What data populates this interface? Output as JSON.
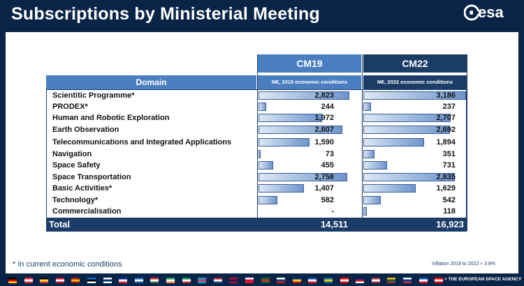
{
  "title": "Subscriptions by Ministerial Meeting",
  "logo_text": "esa",
  "columns": {
    "domain_header": "Domain",
    "cm19": {
      "label": "CM19",
      "sub": "M€, 2019 economic conditions"
    },
    "cm22": {
      "label": "CM22",
      "sub": "M€, 2022 economic conditions"
    }
  },
  "rows": [
    {
      "domain": "Scientitic Programme*",
      "cm19_text": "2,823",
      "cm22_text": "3,186",
      "cm19": 2823,
      "cm22": 3186
    },
    {
      "domain": "PRODEX*",
      "cm19_text": "244",
      "cm22_text": "237",
      "cm19": 244,
      "cm22": 237
    },
    {
      "domain": "Human and Robotic Exploration",
      "cm19_text": "1,972",
      "cm22_text": "2,707",
      "cm19": 1972,
      "cm22": 2707
    },
    {
      "domain": "Earth Observation",
      "cm19_text": "2,607",
      "cm22_text": "2,692",
      "cm19": 2607,
      "cm22": 2692
    },
    {
      "domain": "Telecommunications and Integrated Applications",
      "cm19_text": "1,590",
      "cm22_text": "1,894",
      "cm19": 1590,
      "cm22": 1894
    },
    {
      "domain": "Navigation",
      "cm19_text": "73",
      "cm22_text": "351",
      "cm19": 73,
      "cm22": 351
    },
    {
      "domain": "Space Safety",
      "cm19_text": "455",
      "cm22_text": "731",
      "cm19": 455,
      "cm22": 731
    },
    {
      "domain": "Space Transportation",
      "cm19_text": "2,758",
      "cm22_text": "2,835",
      "cm19": 2758,
      "cm22": 2835
    },
    {
      "domain": "Basic Activities*",
      "cm19_text": "1,407",
      "cm22_text": "1,629",
      "cm19": 1407,
      "cm22": 1629
    },
    {
      "domain": "Technology*",
      "cm19_text": "582",
      "cm22_text": "542",
      "cm19": 582,
      "cm22": 542
    },
    {
      "domain": "Commercialisation",
      "cm19_text": "-",
      "cm22_text": "118",
      "cm19": 0,
      "cm22": 118
    }
  ],
  "total": {
    "label": "Total",
    "cm19": "14,511",
    "cm22": "16,923"
  },
  "footnote": "* In current economic conditions",
  "inflation_note": "Inflation 2019 to 2022 ≈ 3.8%",
  "agency_text": "+ THE EUROPEAN SPACE AGENCY",
  "colors": {
    "header_light": "#4a7ec1",
    "header_dark": "#1c3c68",
    "background": "#0a2447"
  },
  "flags": [
    [
      "#000000",
      "#dd0000",
      "#ffce00"
    ],
    [
      "#ed2939",
      "#ffffff",
      "#ed2939"
    ],
    [
      "#000000",
      "#fdda24",
      "#ef3340"
    ],
    [
      "#c8102e",
      "#ffffff",
      "#c8102e"
    ],
    [
      "#aa151b",
      "#f1bf00",
      "#aa151b"
    ],
    [
      "#0072ce",
      "#000000",
      "#ffffff"
    ],
    [
      "#ffffff",
      "#002f6c",
      "#ffffff"
    ],
    [
      "#002395",
      "#ffffff",
      "#ed2939"
    ],
    [
      "#0d5eaf",
      "#ffffff",
      "#0d5eaf"
    ],
    [
      "#ce2939",
      "#ffffff",
      "#477050"
    ],
    [
      "#169b62",
      "#ffffff",
      "#ff883e"
    ],
    [
      "#009246",
      "#ffffff",
      "#ce2b37"
    ],
    [
      "#00a1de",
      "#ef3340",
      "#00a1de"
    ],
    [
      "#ae1c28",
      "#ffffff",
      "#21468b"
    ],
    [
      "#ba0c2f",
      "#00205b",
      "#ba0c2f"
    ],
    [
      "#ffffff",
      "#dc143c",
      "#dc143c"
    ],
    [
      "#046a38",
      "#da291c",
      "#046a38"
    ],
    [
      "#ffffff",
      "#11457e",
      "#d7141a"
    ],
    [
      "#002b7f",
      "#fcd116",
      "#ce1126"
    ],
    [
      "#0b4ea2",
      "#ffffff",
      "#ee1c25"
    ],
    [
      "#006aa7",
      "#fecc00",
      "#006aa7"
    ],
    [
      "#ff0000",
      "#ffffff",
      "#ff0000"
    ],
    [
      "#012169",
      "#c8102e",
      "#ffffff"
    ],
    [
      "#9e3039",
      "#ffffff",
      "#9e3039"
    ],
    [
      "#fdb913",
      "#006a44",
      "#c1272d"
    ],
    [
      "#ffffff",
      "#0038a8",
      "#d52b1e"
    ],
    [
      "#005da4",
      "#ffffff",
      "#ed1c24"
    ],
    [
      "#ff0000",
      "#ffffff",
      "#ff0000"
    ]
  ]
}
